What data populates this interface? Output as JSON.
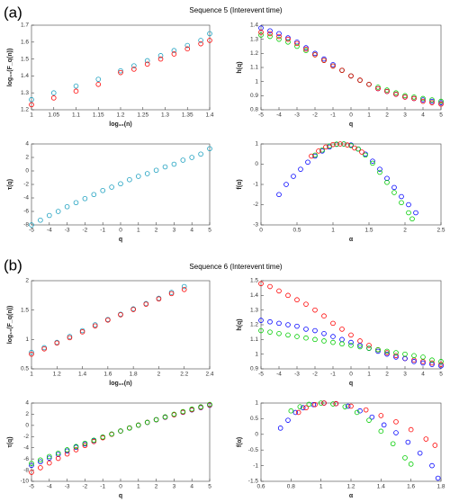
{
  "panels": [
    {
      "label": "(a)",
      "title": "Sequence 5 (Interevent time)"
    },
    {
      "label": "(b)",
      "title": "Sequence 6 (Interevent time)"
    }
  ],
  "chart_data": [
    {
      "type": "scatter",
      "xlabel": "log₁₀(n)",
      "ylabel": "log₁₀(F_q(n))",
      "x": [
        1.0,
        1.05,
        1.1,
        1.15,
        1.2,
        1.23,
        1.26,
        1.29,
        1.32,
        1.35,
        1.38,
        1.4
      ],
      "series": [
        {
          "color": "#1a9fbf",
          "values": [
            1.26,
            1.3,
            1.34,
            1.38,
            1.43,
            1.46,
            1.49,
            1.52,
            1.55,
            1.58,
            1.61,
            1.65
          ]
        },
        {
          "color": "#ff0000",
          "values": [
            1.23,
            1.27,
            1.31,
            1.35,
            1.42,
            1.44,
            1.47,
            1.5,
            1.53,
            1.56,
            1.59,
            1.61
          ]
        }
      ],
      "xlim": [
        1,
        1.4
      ],
      "xticks": [
        1,
        1.05,
        1.1,
        1.15,
        1.2,
        1.25,
        1.3,
        1.35,
        1.4
      ],
      "ylim": [
        1.2,
        1.7
      ],
      "yticks": [
        1.2,
        1.3,
        1.4,
        1.5,
        1.6,
        1.7
      ]
    },
    {
      "type": "scatter",
      "xlabel": "q",
      "ylabel": "h(q)",
      "x": [
        -5,
        -4.5,
        -4,
        -3.5,
        -3,
        -2.5,
        -2,
        -1.5,
        -1,
        -0.5,
        0,
        0.5,
        1,
        1.5,
        2,
        2.5,
        3,
        3.5,
        4,
        4.5,
        5
      ],
      "series": [
        {
          "color": "#0000ff",
          "values": [
            1.38,
            1.36,
            1.34,
            1.31,
            1.28,
            1.24,
            1.2,
            1.16,
            1.12,
            1.08,
            1.04,
            1.01,
            0.98,
            0.95,
            0.93,
            0.91,
            0.89,
            0.88,
            0.87,
            0.86,
            0.85
          ]
        },
        {
          "color": "#00cc00",
          "values": [
            1.33,
            1.32,
            1.3,
            1.28,
            1.25,
            1.22,
            1.19,
            1.15,
            1.11,
            1.08,
            1.04,
            1.01,
            0.98,
            0.96,
            0.94,
            0.92,
            0.9,
            0.89,
            0.88,
            0.87,
            0.86
          ]
        },
        {
          "color": "#ff0000",
          "values": [
            1.35,
            1.34,
            1.32,
            1.3,
            1.27,
            1.23,
            1.19,
            1.15,
            1.11,
            1.08,
            1.04,
            1.01,
            0.98,
            0.95,
            0.93,
            0.91,
            0.89,
            0.88,
            0.86,
            0.85,
            0.84
          ]
        }
      ],
      "xlim": [
        -5,
        5
      ],
      "xticks": [
        -5,
        -4,
        -3,
        -2,
        -1,
        0,
        1,
        2,
        3,
        4,
        5
      ],
      "ylim": [
        0.8,
        1.4
      ],
      "yticks": [
        0.8,
        0.9,
        1,
        1.1,
        1.2,
        1.3,
        1.4
      ]
    },
    {
      "type": "scatter",
      "xlabel": "q",
      "ylabel": "τ(q)",
      "x": [
        -5,
        -4.5,
        -4,
        -3.5,
        -3,
        -2.5,
        -2,
        -1.5,
        -1,
        -0.5,
        0,
        0.5,
        1,
        1.5,
        2,
        2.5,
        3,
        3.5,
        4,
        4.5,
        5
      ],
      "series": [
        {
          "color": "#1a9fbf",
          "values": [
            -8.0,
            -7.3,
            -6.6,
            -6.0,
            -5.3,
            -4.7,
            -4.1,
            -3.5,
            -2.9,
            -2.4,
            -1.9,
            -1.3,
            -0.8,
            -0.4,
            0.1,
            0.6,
            1.0,
            1.6,
            2.0,
            2.5,
            3.3
          ]
        }
      ],
      "xlim": [
        -5,
        5
      ],
      "xticks": [
        -5,
        -4,
        -3,
        -2,
        -1,
        0,
        1,
        2,
        3,
        4,
        5
      ],
      "ylim": [
        -8,
        4
      ],
      "yticks": [
        -8,
        -6,
        -4,
        -2,
        0,
        2,
        4
      ]
    },
    {
      "type": "scatter",
      "xlabel": "α",
      "ylabel": "f(α)",
      "series": [
        {
          "color": "#0000ff",
          "x": [
            0.25,
            0.35,
            0.45,
            0.55,
            0.65,
            0.75,
            0.85,
            0.95,
            1.05,
            1.15,
            1.25,
            1.35,
            1.45,
            1.55,
            1.65,
            1.75,
            1.85,
            1.95,
            2.05,
            2.15
          ],
          "values": [
            -1.5,
            -1.0,
            -0.6,
            -0.25,
            0.1,
            0.4,
            0.65,
            0.85,
            0.98,
            1.0,
            0.95,
            0.75,
            0.5,
            0.15,
            -0.25,
            -0.7,
            -1.15,
            -1.6,
            -2.0,
            -2.4
          ]
        },
        {
          "color": "#00cc00",
          "x": [
            0.75,
            0.85,
            0.95,
            1.05,
            1.15,
            1.25,
            1.35,
            1.45,
            1.55,
            1.65,
            1.75,
            1.85,
            1.95,
            2.05,
            2.1
          ],
          "values": [
            0.45,
            0.7,
            0.9,
            0.99,
            1.0,
            0.92,
            0.75,
            0.45,
            0.05,
            -0.4,
            -0.9,
            -1.4,
            -1.9,
            -2.4,
            -2.7
          ]
        },
        {
          "color": "#ff0000",
          "x": [
            0.7,
            0.8,
            0.9,
            1.0,
            1.1,
            1.2,
            1.3,
            1.4
          ],
          "values": [
            0.4,
            0.65,
            0.85,
            0.97,
            1.0,
            0.95,
            0.8,
            0.6
          ]
        }
      ],
      "xlim": [
        0,
        2.5
      ],
      "xticks": [
        0,
        0.5,
        1,
        1.5,
        2,
        2.5
      ],
      "ylim": [
        -3,
        1
      ],
      "yticks": [
        -3,
        -2,
        -1,
        0,
        1
      ]
    },
    {
      "type": "scatter",
      "xlabel": "log₁₀(n)",
      "ylabel": "log₁₀(F_q(n))",
      "x": [
        1.0,
        1.1,
        1.2,
        1.3,
        1.4,
        1.5,
        1.6,
        1.7,
        1.8,
        1.9,
        2.0,
        2.1,
        2.2
      ],
      "series": [
        {
          "color": "#1a9fbf",
          "values": [
            0.78,
            0.86,
            0.95,
            1.05,
            1.15,
            1.25,
            1.34,
            1.43,
            1.52,
            1.61,
            1.7,
            1.8,
            1.9
          ]
        },
        {
          "color": "#ff0000",
          "values": [
            0.75,
            0.84,
            0.94,
            1.03,
            1.13,
            1.23,
            1.33,
            1.42,
            1.51,
            1.6,
            1.69,
            1.78,
            1.85
          ]
        }
      ],
      "xlim": [
        1,
        2.4
      ],
      "xticks": [
        1,
        1.2,
        1.4,
        1.6,
        1.8,
        2,
        2.2,
        2.4
      ],
      "ylim": [
        0.5,
        2
      ],
      "yticks": [
        0.5,
        1,
        1.5,
        2
      ]
    },
    {
      "type": "scatter",
      "xlabel": "q",
      "ylabel": "h(q)",
      "x": [
        -5,
        -4.5,
        -4,
        -3.5,
        -3,
        -2.5,
        -2,
        -1.5,
        -1,
        -0.5,
        0,
        0.5,
        1,
        1.5,
        2,
        2.5,
        3,
        3.5,
        4,
        4.5,
        5
      ],
      "series": [
        {
          "color": "#ff0000",
          "values": [
            1.48,
            1.46,
            1.43,
            1.4,
            1.37,
            1.34,
            1.3,
            1.26,
            1.21,
            1.17,
            1.13,
            1.09,
            1.06,
            1.03,
            1.01,
            0.99,
            0.97,
            0.96,
            0.95,
            0.94,
            0.93
          ]
        },
        {
          "color": "#0000ff",
          "values": [
            1.23,
            1.22,
            1.21,
            1.2,
            1.19,
            1.17,
            1.16,
            1.14,
            1.12,
            1.1,
            1.08,
            1.06,
            1.04,
            1.02,
            1.0,
            0.98,
            0.97,
            0.95,
            0.94,
            0.93,
            0.92
          ]
        },
        {
          "color": "#00cc00",
          "values": [
            1.16,
            1.15,
            1.14,
            1.13,
            1.12,
            1.11,
            1.1,
            1.09,
            1.08,
            1.07,
            1.06,
            1.05,
            1.04,
            1.03,
            1.02,
            1.01,
            1.0,
            0.99,
            0.98,
            0.96,
            0.95
          ]
        }
      ],
      "xlim": [
        -5,
        5
      ],
      "xticks": [
        -5,
        -4,
        -3,
        -2,
        -1,
        0,
        1,
        2,
        3,
        4,
        5
      ],
      "ylim": [
        0.9,
        1.5
      ],
      "yticks": [
        0.9,
        1,
        1.1,
        1.2,
        1.3,
        1.4,
        1.5
      ]
    },
    {
      "type": "scatter",
      "xlabel": "q",
      "ylabel": "τ(q)",
      "x": [
        -5,
        -4.5,
        -4,
        -3.5,
        -3,
        -2.5,
        -2,
        -1.5,
        -1,
        -0.5,
        0,
        0.5,
        1,
        1.5,
        2,
        2.5,
        3,
        3.5,
        4,
        4.5,
        5
      ],
      "series": [
        {
          "color": "#0000ff",
          "values": [
            -7.15,
            -6.5,
            -5.84,
            -5.2,
            -4.57,
            -3.9,
            -3.32,
            -2.71,
            -2.12,
            -1.55,
            -1,
            -0.47,
            0.04,
            0.53,
            1,
            1.45,
            1.91,
            2.33,
            2.76,
            3.18,
            3.6
          ]
        },
        {
          "color": "#ff0000",
          "values": [
            -8.4,
            -7.57,
            -6.72,
            -5.9,
            -5.11,
            -4.35,
            -3.6,
            -2.89,
            -2.21,
            -1.59,
            -1,
            -0.45,
            0.06,
            0.55,
            1.02,
            1.48,
            1.91,
            2.36,
            2.8,
            3.23,
            3.65
          ]
        },
        {
          "color": "#00cc00",
          "values": [
            -6.8,
            -6.18,
            -5.56,
            -4.96,
            -4.36,
            -3.78,
            -3.2,
            -2.64,
            -2.08,
            -1.54,
            -1,
            -0.48,
            0.04,
            0.55,
            1.04,
            1.53,
            2.0,
            2.47,
            2.92,
            3.32,
            3.75
          ]
        }
      ],
      "xlim": [
        -5,
        5
      ],
      "xticks": [
        -5,
        -4,
        -3,
        -2,
        -1,
        0,
        1,
        2,
        3,
        4,
        5
      ],
      "ylim": [
        -10,
        4
      ],
      "yticks": [
        -10,
        -8,
        -6,
        -4,
        -2,
        0,
        2,
        4
      ]
    },
    {
      "type": "scatter",
      "xlabel": "α",
      "ylabel": "f(α)",
      "series": [
        {
          "color": "#0000ff",
          "x": [
            0.73,
            0.78,
            0.83,
            0.88,
            0.95,
            1.02,
            1.1,
            1.18,
            1.26,
            1.34,
            1.42,
            1.5,
            1.58,
            1.66,
            1.74,
            1.78
          ],
          "values": [
            0.2,
            0.45,
            0.7,
            0.85,
            0.95,
            1.0,
            0.98,
            0.9,
            0.75,
            0.55,
            0.3,
            0.05,
            -0.25,
            -0.6,
            -1.0,
            -1.4
          ]
        },
        {
          "color": "#00cc00",
          "x": [
            0.8,
            0.86,
            0.92,
            1.0,
            1.08,
            1.16,
            1.24,
            1.32,
            1.4,
            1.48,
            1.56,
            1.6
          ],
          "values": [
            0.75,
            0.88,
            0.96,
            1.0,
            0.97,
            0.88,
            0.7,
            0.45,
            0.1,
            -0.3,
            -0.75,
            -0.95
          ]
        },
        {
          "color": "#ff0000",
          "x": [
            0.85,
            0.9,
            0.96,
            1.02,
            1.1,
            1.2,
            1.3,
            1.4,
            1.5,
            1.6,
            1.7,
            1.76
          ],
          "values": [
            0.7,
            0.85,
            0.95,
            1.0,
            0.98,
            0.9,
            0.78,
            0.6,
            0.4,
            0.15,
            -0.15,
            -0.35
          ]
        }
      ],
      "xlim": [
        0.6,
        1.8
      ],
      "xticks": [
        0.6,
        0.8,
        1,
        1.2,
        1.4,
        1.6,
        1.8
      ],
      "ylim": [
        -1.5,
        1
      ],
      "yticks": [
        -1.5,
        -1,
        -0.5,
        0,
        0.5,
        1
      ]
    }
  ]
}
